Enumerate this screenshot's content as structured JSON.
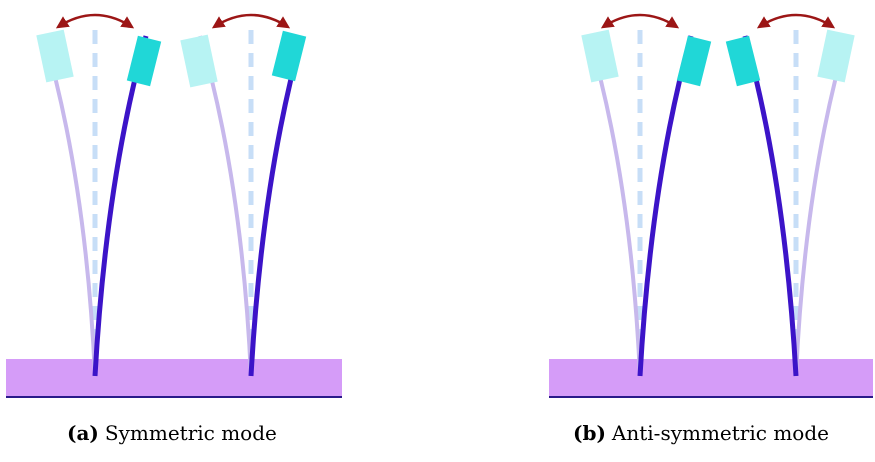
{
  "panels": [
    {
      "label": "(a)",
      "caption": "Symmetric mode",
      "mode": "symmetric"
    },
    {
      "label": "(b)",
      "caption": "Anti-symmetric mode",
      "mode": "anti-symmetric"
    }
  ],
  "colors": {
    "base": "#d59cf8",
    "base_edge": "#2a1a8a",
    "beam_active": "#3c14c8",
    "beam_ghost": "#c7b8ec",
    "centerline": "#c7def7",
    "tip_active": "#20d7d7",
    "tip_ghost": "#b7f3f3",
    "arrow": "#9c1616"
  }
}
